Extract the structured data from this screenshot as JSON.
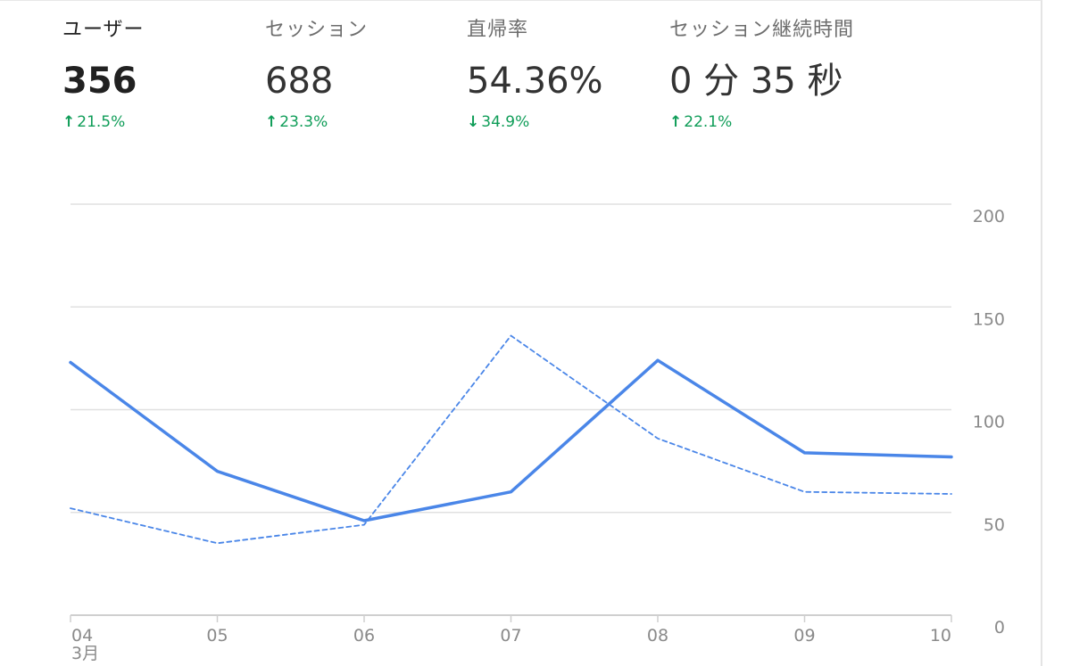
{
  "metrics": [
    {
      "label": "ユーザー",
      "value": "356",
      "arrow": "↑",
      "change": "21.5%"
    },
    {
      "label": "セッション",
      "value": "688",
      "arrow": "↑",
      "change": "23.3%"
    },
    {
      "label": "直帰率",
      "value": "54.36%",
      "arrow": "↓",
      "change": "34.9%"
    },
    {
      "label": "セッション継続時間",
      "value": "0 分 35 秒",
      "arrow": "↑",
      "change": "22.1%"
    }
  ],
  "colors": {
    "series": "#4a86e8",
    "positive": "#0f9d58",
    "grid": "#e0e0e0"
  },
  "chart_data": {
    "type": "line",
    "categories": [
      "04",
      "05",
      "06",
      "07",
      "08",
      "09",
      "10"
    ],
    "month_label": "3月",
    "series": [
      {
        "values": [
          123,
          70,
          46,
          60,
          124,
          79,
          77
        ],
        "style": "solid"
      },
      {
        "values": [
          52,
          35,
          44,
          136,
          86,
          60,
          59
        ],
        "style": "dashed"
      }
    ],
    "y_ticks": [
      "200",
      "150",
      "100",
      "50",
      "0"
    ],
    "ylim": [
      0,
      200
    ],
    "grid": true
  }
}
